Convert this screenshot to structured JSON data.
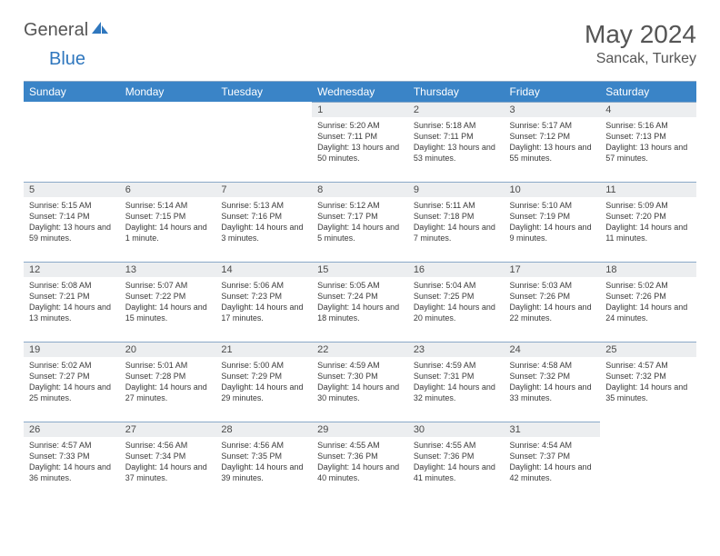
{
  "logo": {
    "general": "General",
    "blue": "Blue"
  },
  "title": "May 2024",
  "location": "Sancak, Turkey",
  "colors": {
    "header_bg": "#3a84c7",
    "header_text": "#ffffff",
    "daynum_bg": "#eceef0",
    "rule": "#8aa9c8",
    "text": "#3a3a3a",
    "title_text": "#555555",
    "logo_blue": "#2f77be"
  },
  "weekdays": [
    "Sunday",
    "Monday",
    "Tuesday",
    "Wednesday",
    "Thursday",
    "Friday",
    "Saturday"
  ],
  "weeks": [
    [
      null,
      null,
      null,
      {
        "n": "1",
        "sunrise": "5:20 AM",
        "sunset": "7:11 PM",
        "daylight": "13 hours and 50 minutes."
      },
      {
        "n": "2",
        "sunrise": "5:18 AM",
        "sunset": "7:11 PM",
        "daylight": "13 hours and 53 minutes."
      },
      {
        "n": "3",
        "sunrise": "5:17 AM",
        "sunset": "7:12 PM",
        "daylight": "13 hours and 55 minutes."
      },
      {
        "n": "4",
        "sunrise": "5:16 AM",
        "sunset": "7:13 PM",
        "daylight": "13 hours and 57 minutes."
      }
    ],
    [
      {
        "n": "5",
        "sunrise": "5:15 AM",
        "sunset": "7:14 PM",
        "daylight": "13 hours and 59 minutes."
      },
      {
        "n": "6",
        "sunrise": "5:14 AM",
        "sunset": "7:15 PM",
        "daylight": "14 hours and 1 minute."
      },
      {
        "n": "7",
        "sunrise": "5:13 AM",
        "sunset": "7:16 PM",
        "daylight": "14 hours and 3 minutes."
      },
      {
        "n": "8",
        "sunrise": "5:12 AM",
        "sunset": "7:17 PM",
        "daylight": "14 hours and 5 minutes."
      },
      {
        "n": "9",
        "sunrise": "5:11 AM",
        "sunset": "7:18 PM",
        "daylight": "14 hours and 7 minutes."
      },
      {
        "n": "10",
        "sunrise": "5:10 AM",
        "sunset": "7:19 PM",
        "daylight": "14 hours and 9 minutes."
      },
      {
        "n": "11",
        "sunrise": "5:09 AM",
        "sunset": "7:20 PM",
        "daylight": "14 hours and 11 minutes."
      }
    ],
    [
      {
        "n": "12",
        "sunrise": "5:08 AM",
        "sunset": "7:21 PM",
        "daylight": "14 hours and 13 minutes."
      },
      {
        "n": "13",
        "sunrise": "5:07 AM",
        "sunset": "7:22 PM",
        "daylight": "14 hours and 15 minutes."
      },
      {
        "n": "14",
        "sunrise": "5:06 AM",
        "sunset": "7:23 PM",
        "daylight": "14 hours and 17 minutes."
      },
      {
        "n": "15",
        "sunrise": "5:05 AM",
        "sunset": "7:24 PM",
        "daylight": "14 hours and 18 minutes."
      },
      {
        "n": "16",
        "sunrise": "5:04 AM",
        "sunset": "7:25 PM",
        "daylight": "14 hours and 20 minutes."
      },
      {
        "n": "17",
        "sunrise": "5:03 AM",
        "sunset": "7:26 PM",
        "daylight": "14 hours and 22 minutes."
      },
      {
        "n": "18",
        "sunrise": "5:02 AM",
        "sunset": "7:26 PM",
        "daylight": "14 hours and 24 minutes."
      }
    ],
    [
      {
        "n": "19",
        "sunrise": "5:02 AM",
        "sunset": "7:27 PM",
        "daylight": "14 hours and 25 minutes."
      },
      {
        "n": "20",
        "sunrise": "5:01 AM",
        "sunset": "7:28 PM",
        "daylight": "14 hours and 27 minutes."
      },
      {
        "n": "21",
        "sunrise": "5:00 AM",
        "sunset": "7:29 PM",
        "daylight": "14 hours and 29 minutes."
      },
      {
        "n": "22",
        "sunrise": "4:59 AM",
        "sunset": "7:30 PM",
        "daylight": "14 hours and 30 minutes."
      },
      {
        "n": "23",
        "sunrise": "4:59 AM",
        "sunset": "7:31 PM",
        "daylight": "14 hours and 32 minutes."
      },
      {
        "n": "24",
        "sunrise": "4:58 AM",
        "sunset": "7:32 PM",
        "daylight": "14 hours and 33 minutes."
      },
      {
        "n": "25",
        "sunrise": "4:57 AM",
        "sunset": "7:32 PM",
        "daylight": "14 hours and 35 minutes."
      }
    ],
    [
      {
        "n": "26",
        "sunrise": "4:57 AM",
        "sunset": "7:33 PM",
        "daylight": "14 hours and 36 minutes."
      },
      {
        "n": "27",
        "sunrise": "4:56 AM",
        "sunset": "7:34 PM",
        "daylight": "14 hours and 37 minutes."
      },
      {
        "n": "28",
        "sunrise": "4:56 AM",
        "sunset": "7:35 PM",
        "daylight": "14 hours and 39 minutes."
      },
      {
        "n": "29",
        "sunrise": "4:55 AM",
        "sunset": "7:36 PM",
        "daylight": "14 hours and 40 minutes."
      },
      {
        "n": "30",
        "sunrise": "4:55 AM",
        "sunset": "7:36 PM",
        "daylight": "14 hours and 41 minutes."
      },
      {
        "n": "31",
        "sunrise": "4:54 AM",
        "sunset": "7:37 PM",
        "daylight": "14 hours and 42 minutes."
      },
      null
    ]
  ],
  "labels": {
    "sunrise": "Sunrise: ",
    "sunset": "Sunset: ",
    "daylight": "Daylight: "
  }
}
